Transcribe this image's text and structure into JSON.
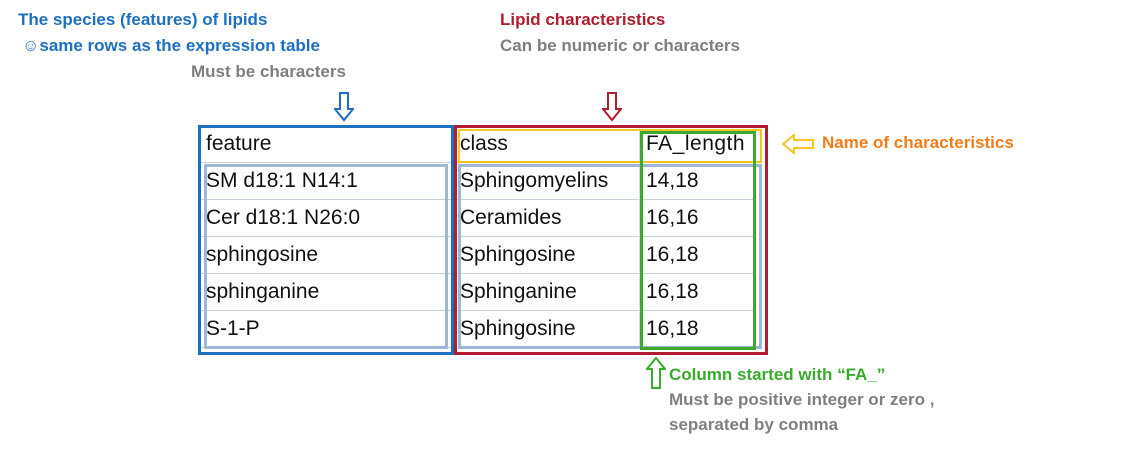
{
  "annotations": {
    "feature_title": "The species (features) of lipids",
    "feature_same_rows": "same rows as the expression table",
    "feature_smiley": "☺",
    "feature_must": "Must be characters",
    "lipid_title": "Lipid characteristics",
    "lipid_sub": "Can be numeric or characters",
    "name_of_characteristics": "Name of characteristics",
    "fa_title": "Column started with “FA_”",
    "fa_rule_1": "Must be positive integer or zero ,",
    "fa_rule_2": "separated by comma"
  },
  "table": {
    "headers": [
      "feature",
      "class",
      "FA_length"
    ],
    "rows": [
      [
        "SM d18:1 N14:1",
        "Sphingomyelins",
        "14,18"
      ],
      [
        "Cer d18:1 N26:0",
        "Ceramides",
        "16,16"
      ],
      [
        "sphingosine",
        "Sphingosine",
        "16,18"
      ],
      [
        "sphinganine",
        "Sphinganine",
        "16,18"
      ],
      [
        "S-1-P",
        "Sphingosine",
        "16,18"
      ]
    ]
  },
  "colors": {
    "blue": "#1f6fc0",
    "red": "#b01e2d",
    "gray": "#7f7f7f",
    "orange": "#f07d1a",
    "green": "#3aaa2f",
    "light_blue_box": "#9fb7d4",
    "yellow_box": "#f3c623"
  },
  "icons": [
    "down-arrow-icon-blue",
    "down-arrow-icon-red",
    "left-arrow-icon-orange",
    "up-arrow-icon-green"
  ]
}
